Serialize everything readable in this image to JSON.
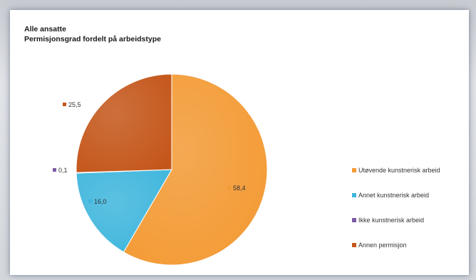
{
  "chart_data": {
    "type": "pie",
    "title": "Alle ansatte",
    "subtitle": "Permisjonsgrad fordelt på arbeidstype",
    "categories": [
      "Utøvende kunstnerisk arbeid",
      "Annet kunstnerisk arbeid",
      "Ikke kunstnerisk arbeid",
      "Annen permisjon"
    ],
    "values": [
      58.4,
      16.0,
      0.1,
      25.5
    ],
    "data_labels": [
      "58,4",
      "16,0",
      "0,1",
      "25,5"
    ],
    "colors": [
      "#f39a34",
      "#3fb6dc",
      "#7b5aa6",
      "#c4561a"
    ],
    "legend_position": "right"
  }
}
